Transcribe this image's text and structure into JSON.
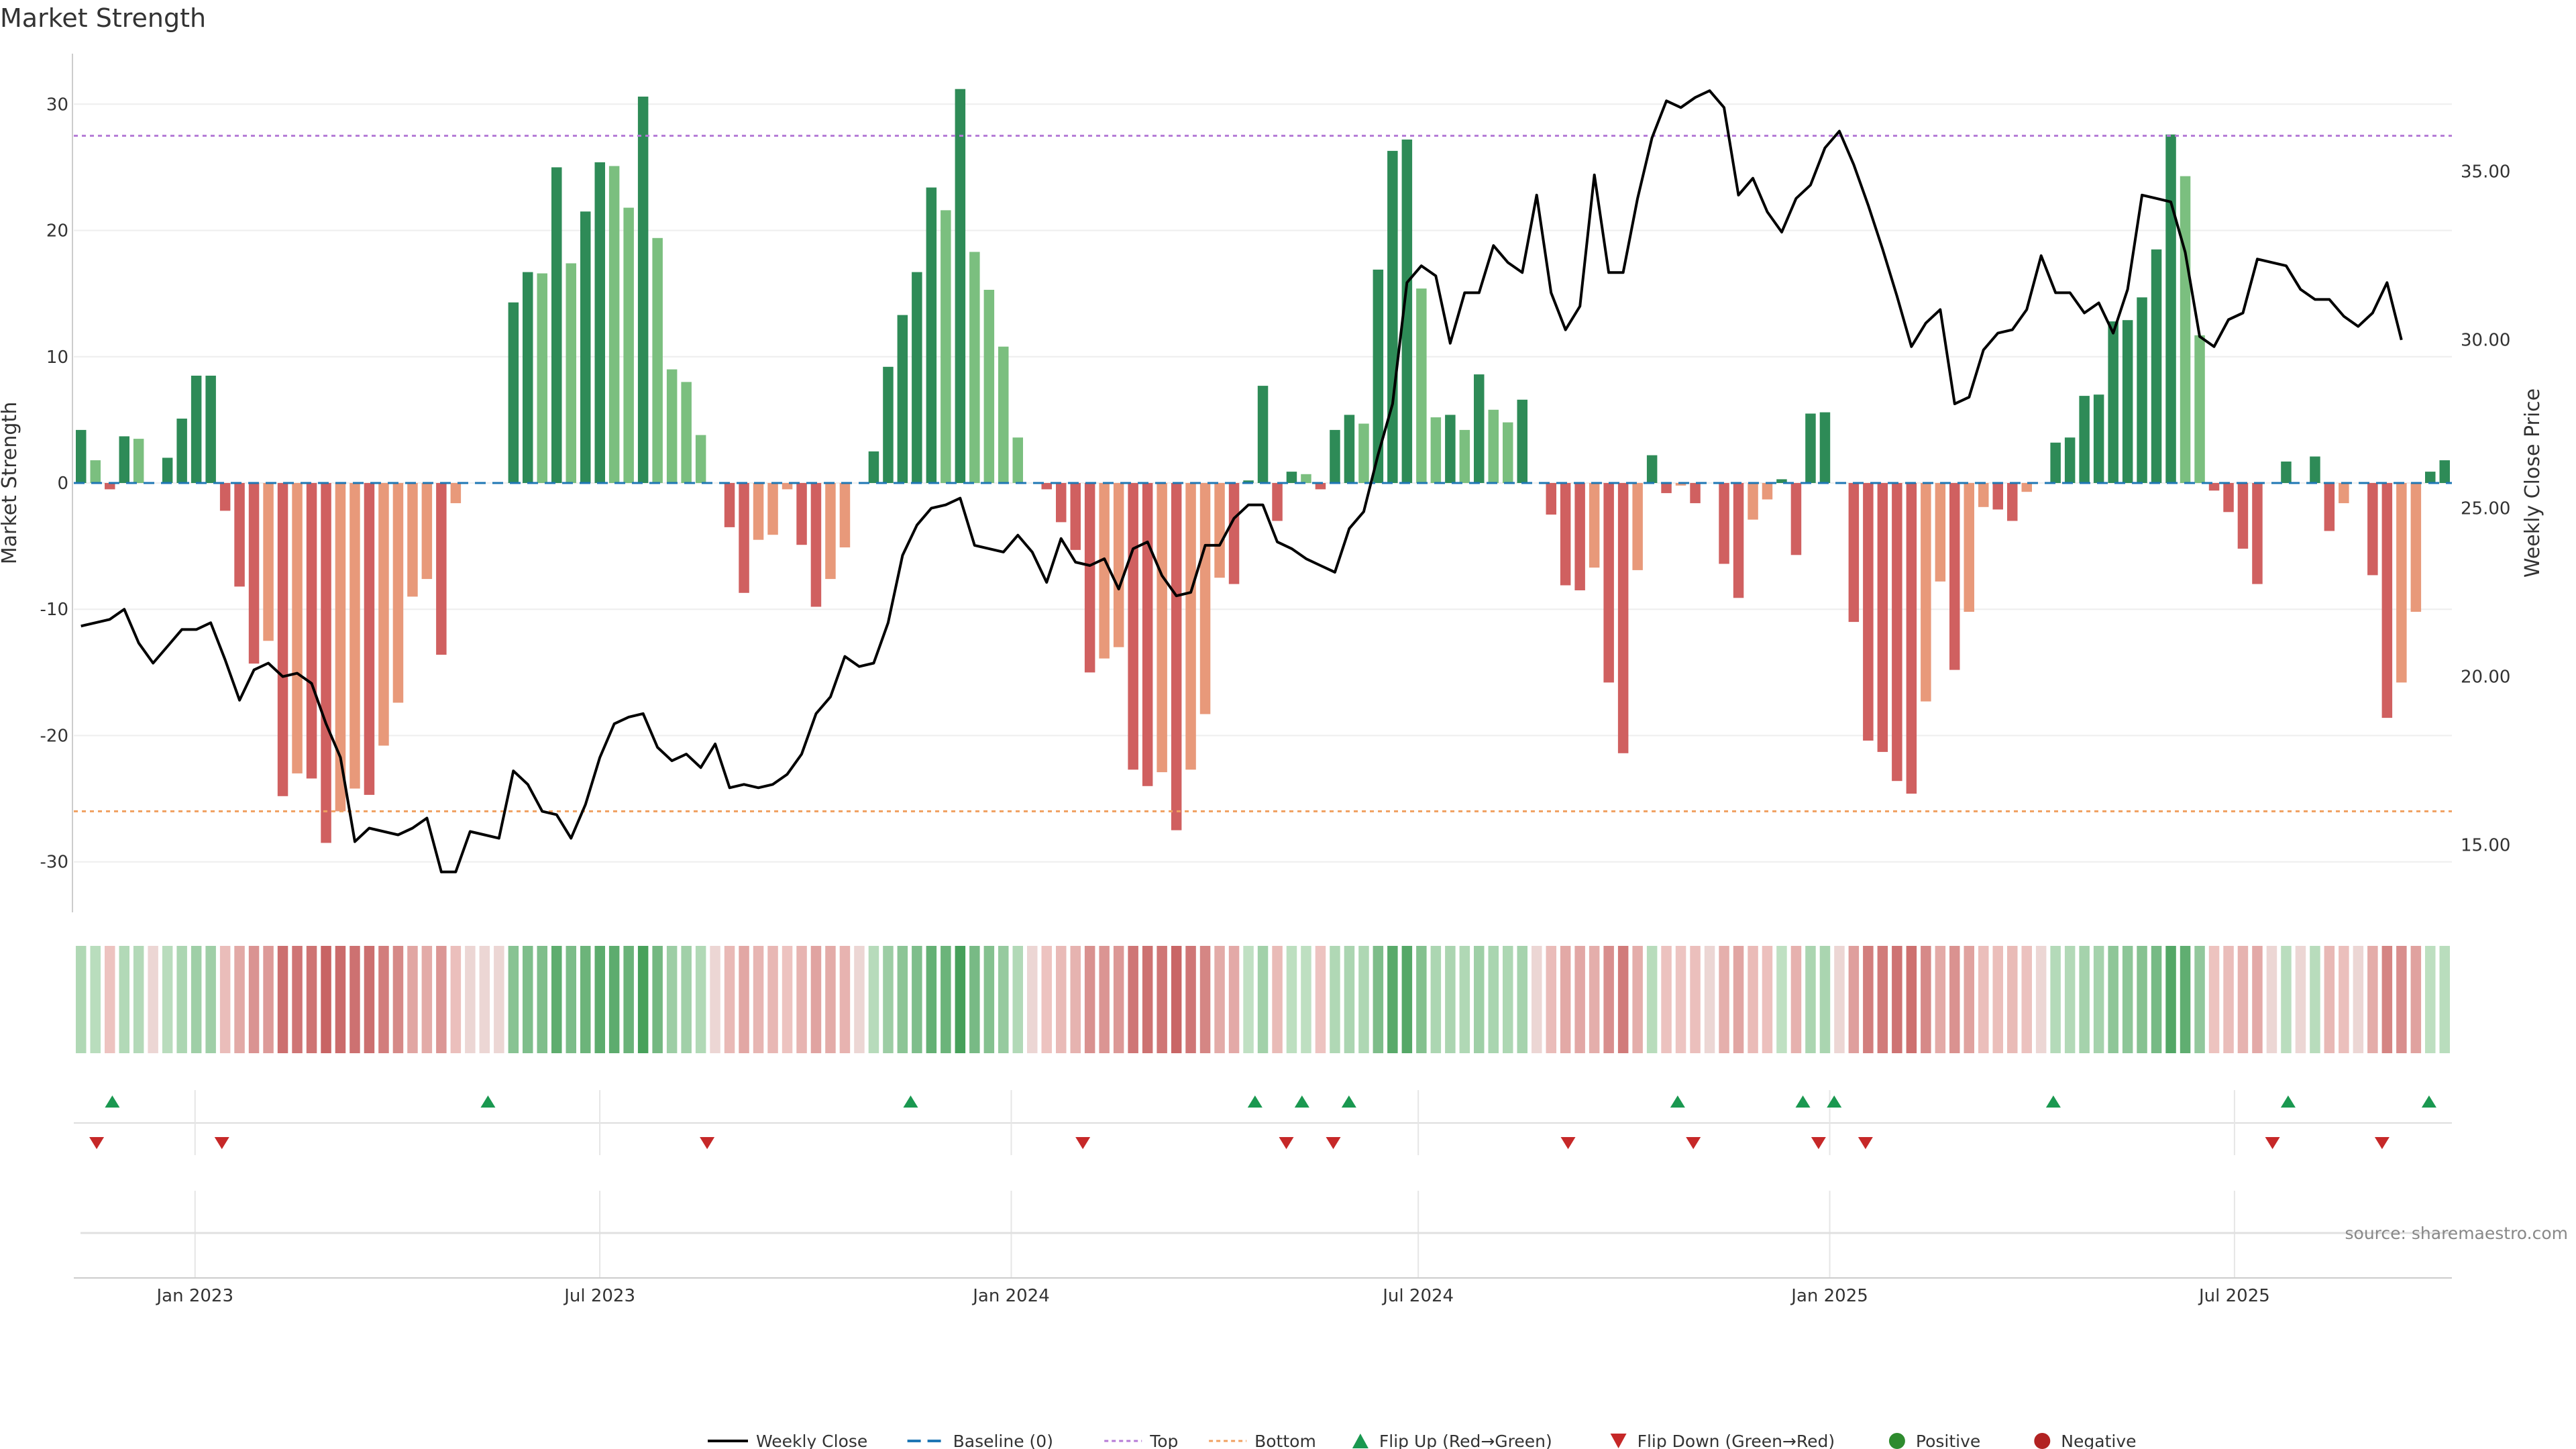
{
  "chart_data": {
    "type": "bar",
    "title": "Market Strength",
    "y_left_label": "Market Strength",
    "y_right_label": "Weekly Close Price",
    "y_left_range": [
      -34,
      34
    ],
    "y_left_ticks": [
      "-30",
      "-20",
      "-10",
      "0",
      "10",
      "20",
      "30"
    ],
    "y_right_range": [
      13.0,
      38.5
    ],
    "y_right_ticks": [
      "15.00",
      "20.00",
      "25.00",
      "30.00",
      "35.00"
    ],
    "x_start": "2022-11-11",
    "x_end": "2025-10-03",
    "x_ticks": [
      {
        "label": "Jan 2023",
        "date": "2023-01-01"
      },
      {
        "label": "Jul 2023",
        "date": "2023-07-01"
      },
      {
        "label": "Jan 2024",
        "date": "2024-01-01"
      },
      {
        "label": "Jul 2024",
        "date": "2024-07-01"
      },
      {
        "label": "Jan 2025",
        "date": "2025-01-01"
      },
      {
        "label": "Jul 2025",
        "date": "2025-07-01"
      }
    ],
    "top_threshold": 27.5,
    "bottom_threshold": -26,
    "top_color": "#b57bd6",
    "bottom_color": "#f0a060",
    "baseline_color": "#1f77b4",
    "price_color": "#000000",
    "colors": {
      "pos_strong": "#2e8b57",
      "pos_weak": "#7bbf7f",
      "neg_strong": "#d06060",
      "neg_weak": "#e8997a"
    },
    "strength_values": [
      4.2,
      1.8,
      -0.5,
      3.7,
      3.5,
      0,
      2,
      5.1,
      8.5,
      8.5,
      -2.2,
      -8.2,
      -14.3,
      -12.5,
      -24.8,
      -23,
      -23.4,
      -28.5,
      -26,
      -24.2,
      -24.7,
      -20.8,
      -17.4,
      -9,
      -7.6,
      -13.6,
      -1.6,
      0,
      0,
      0,
      14.3,
      16.7,
      16.6,
      25,
      17.4,
      21.5,
      25.4,
      25.1,
      21.8,
      30.6,
      19.4,
      9,
      8,
      3.8,
      0,
      -3.5,
      -8.7,
      -4.5,
      -4.1,
      -0.5,
      -4.9,
      -9.8,
      -7.6,
      -5.1,
      0,
      2.5,
      9.2,
      13.3,
      16.7,
      23.4,
      21.6,
      31.2,
      18.3,
      15.3,
      10.8,
      3.6,
      0,
      -0.5,
      -3.1,
      -5.3,
      -15,
      -13.9,
      -13,
      -22.7,
      -24,
      -22.9,
      -27.5,
      -22.7,
      -18.3,
      -7.5,
      -8,
      0.2,
      7.7,
      -3,
      0.9,
      0.7,
      -0.5,
      4.2,
      5.4,
      4.7,
      16.9,
      26.3,
      27.2,
      15.4,
      5.2,
      5.4,
      4.2,
      8.6,
      5.8,
      4.8,
      6.6,
      0,
      -2.5,
      -8.1,
      -8.5,
      -6.7,
      -15.8,
      -21.4,
      -6.9,
      2.2,
      -0.8,
      -0.2,
      -1.6,
      0,
      -6.4,
      -9.1,
      -2.9,
      -1.3,
      0.3,
      -5.7,
      5.5,
      5.6,
      0,
      -11,
      -20.4,
      -21.3,
      -23.6,
      -24.6,
      -17.3,
      -7.8,
      -14.8,
      -10.2,
      -1.9,
      -2.1,
      -3,
      -0.7,
      0,
      3.2,
      3.6,
      6.9,
      7,
      12.8,
      12.9,
      14.7,
      18.5,
      27.6,
      24.3,
      11.7,
      -0.6,
      -2.3,
      -5.2,
      -8,
      0,
      1.7,
      0,
      2.1,
      -3.8,
      -1.6,
      0,
      -7.3,
      -18.6,
      -15.8,
      -10.2,
      0.9,
      1.8
    ],
    "price_values": [
      21.5,
      21.6,
      21.7,
      22,
      21,
      20.4,
      20.9,
      21.4,
      21.4,
      21.6,
      20.5,
      19.3,
      20.2,
      20.4,
      20.0,
      20.1,
      19.8,
      18.6,
      17.6,
      15.1,
      15.5,
      15.4,
      15.3,
      15.5,
      15.8,
      14.2,
      14.2,
      15.4,
      15.3,
      15.2,
      17.2,
      16.8,
      16.0,
      15.9,
      15.2,
      16.2,
      17.6,
      18.6,
      18.8,
      18.9,
      17.9,
      17.5,
      17.7,
      17.3,
      18.0,
      16.7,
      16.8,
      16.7,
      16.8,
      17.1,
      17.7,
      18.9,
      19.4,
      20.6,
      20.3,
      20.4,
      21.6,
      23.6,
      24.5,
      25.0,
      25.1,
      25.3,
      23.9,
      23.8,
      23.7,
      24.2,
      23.7,
      22.8,
      24.1,
      23.4,
      23.3,
      23.5,
      22.6,
      23.8,
      24.0,
      23.0,
      22.4,
      22.5,
      23.9,
      23.9,
      24.7,
      25.1,
      25.1,
      24.0,
      23.8,
      23.5,
      23.3,
      23.1,
      24.4,
      24.9,
      26.6,
      28.1,
      31.7,
      32.2,
      31.9,
      29.9,
      31.4,
      31.4,
      32.8,
      32.3,
      32.0,
      34.3,
      31.4,
      30.3,
      31.0,
      34.9,
      32.0,
      32.0,
      34.2,
      36.0,
      37.1,
      36.9,
      37.2,
      37.4,
      36.9,
      34.3,
      34.8,
      33.8,
      33.2,
      34.2,
      34.6,
      35.7,
      36.2,
      35.2,
      34.0,
      32.7,
      31.3,
      29.8,
      30.5,
      30.9,
      28.1,
      28.3,
      29.7,
      30.2,
      30.3,
      30.9,
      32.5,
      31.4,
      31.4,
      30.8,
      31.1,
      30.2,
      31.5,
      34.3,
      34.2,
      34.1,
      32.6,
      30.1,
      29.8,
      30.6,
      30.8,
      32.4,
      32.3,
      32.2,
      31.5,
      31.2,
      31.2,
      30.7,
      30.4,
      30.8,
      31.7,
      30.0
    ],
    "flip_up_dates": [
      "2022-11-25",
      "2023-05-12",
      "2023-11-17",
      "2024-04-19",
      "2024-05-10",
      "2024-05-31",
      "2024-10-25",
      "2024-12-20",
      "2025-01-03",
      "2025-04-11",
      "2025-07-25",
      "2025-09-26"
    ],
    "flip_down_dates": [
      "2022-11-18",
      "2023-01-13",
      "2023-08-18",
      "2024-02-02",
      "2024-05-03",
      "2024-05-24",
      "2024-09-06",
      "2024-11-01",
      "2024-12-27",
      "2025-01-17",
      "2025-07-18",
      "2025-09-05"
    ],
    "legend": [
      {
        "label": "Weekly Close",
        "marker": "line"
      },
      {
        "label": "Baseline (0)",
        "marker": "dashed"
      },
      {
        "label": "Top",
        "marker": "dotted"
      },
      {
        "label": "Bottom",
        "marker": "dotted"
      },
      {
        "label": "Flip Up (Red→Green)",
        "marker": "triangle-up"
      },
      {
        "label": "Flip Down (Green→Red)",
        "marker": "triangle-down"
      },
      {
        "label": "Positive",
        "marker": "dot"
      },
      {
        "label": "Negative",
        "marker": "dot"
      }
    ],
    "legend_colors": {
      "line": "#000000",
      "baseline": "#1f77b4",
      "top": "#b57bd6",
      "bottom": "#f0a060",
      "flip_up": "#1a9850",
      "flip_down": "#c62828",
      "positive": "#2e8b2e",
      "negative": "#b22222"
    },
    "source": "source: sharemaestro.com"
  }
}
